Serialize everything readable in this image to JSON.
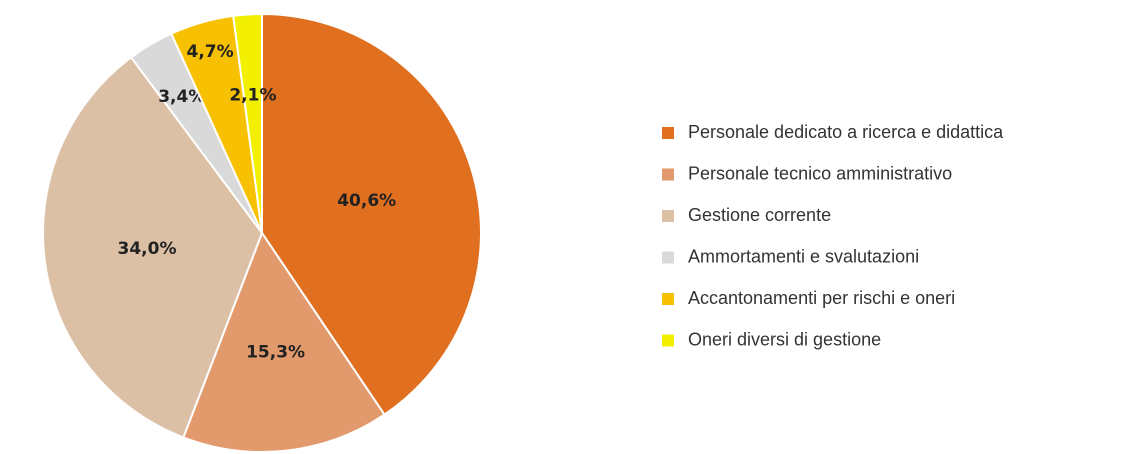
{
  "chart_data": {
    "type": "pie",
    "categories": [
      "Personale dedicato a ricerca e didattica",
      "Personale tecnico amministrativo",
      "Gestione corrente",
      "Ammortamenti e svalutazioni",
      "Accantonamenti per rischi e oneri",
      "Oneri diversi di gestione"
    ],
    "values": [
      40.6,
      15.3,
      34.0,
      3.4,
      4.7,
      2.1
    ],
    "value_labels": [
      "40,6%",
      "15,3%",
      "34,0%",
      "3,4%",
      "4,7%",
      "2,1%"
    ],
    "colors": [
      "#e0701f",
      "#e29a6c",
      "#dbc0a6",
      "#d9d9d9",
      "#f7c000",
      "#f2f000"
    ],
    "legend": "right"
  }
}
